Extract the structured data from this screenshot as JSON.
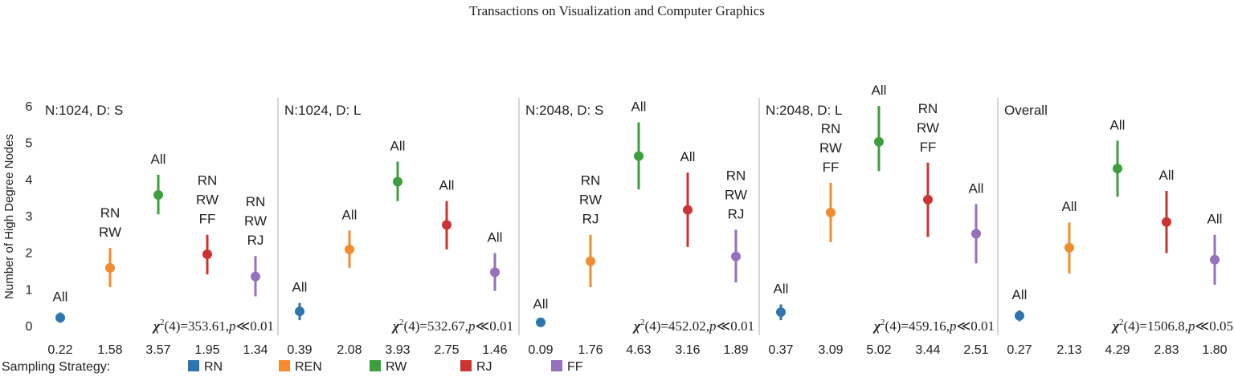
{
  "header": {
    "journal": "Transactions on Visualization and Computer Graphics"
  },
  "chart_data": {
    "type": "scatter",
    "ylabel": "Number of High Degree Nodes",
    "ylim": [
      0,
      6
    ],
    "yticks": [
      0,
      1,
      2,
      3,
      4,
      5,
      6
    ],
    "legend": {
      "title": "Sampling Strategy:",
      "position": "bottom",
      "items": [
        {
          "name": "RN",
          "color": "#2e75b0"
        },
        {
          "name": "REN",
          "color": "#f28c2e"
        },
        {
          "name": "RW",
          "color": "#3c9f3c"
        },
        {
          "name": "RJ",
          "color": "#cc3333"
        },
        {
          "name": "FF",
          "color": "#9470bd"
        }
      ]
    },
    "panels": [
      {
        "title": "N:1024, D: S",
        "stat": "χ2(4)=353.61,p≪0.01",
        "points": [
          {
            "strategy": "RN",
            "mean": 0.22,
            "ci": [
              0.08,
              0.36
            ],
            "label": "0.22",
            "annot": [
              "All"
            ]
          },
          {
            "strategy": "REN",
            "mean": 1.58,
            "ci": [
              1.05,
              2.12
            ],
            "label": "1.58",
            "annot": [
              "RN",
              "RW"
            ]
          },
          {
            "strategy": "RW",
            "mean": 3.57,
            "ci": [
              3.04,
              4.12
            ],
            "label": "3.57",
            "annot": [
              "All"
            ]
          },
          {
            "strategy": "RJ",
            "mean": 1.95,
            "ci": [
              1.4,
              2.48
            ],
            "label": "1.95",
            "annot": [
              "RN",
              "RW",
              "FF"
            ]
          },
          {
            "strategy": "FF",
            "mean": 1.34,
            "ci": [
              0.8,
              1.9
            ],
            "label": "1.34",
            "annot": [
              "RN",
              "RW",
              "RJ"
            ]
          }
        ]
      },
      {
        "title": "N:1024, D: L",
        "stat": "χ2(4)=532.67,p≪0.01",
        "points": [
          {
            "strategy": "RN",
            "mean": 0.39,
            "ci": [
              0.15,
              0.62
            ],
            "label": "0.39",
            "annot": [
              "All"
            ]
          },
          {
            "strategy": "REN",
            "mean": 2.08,
            "ci": [
              1.58,
              2.6
            ],
            "label": "2.08",
            "annot": [
              "All"
            ]
          },
          {
            "strategy": "RW",
            "mean": 3.93,
            "ci": [
              3.4,
              4.48
            ],
            "label": "3.93",
            "annot": [
              "All"
            ]
          },
          {
            "strategy": "RJ",
            "mean": 2.75,
            "ci": [
              2.08,
              3.4
            ],
            "label": "2.75",
            "annot": [
              "All"
            ]
          },
          {
            "strategy": "FF",
            "mean": 1.46,
            "ci": [
              0.95,
              1.98
            ],
            "label": "1.46",
            "annot": [
              "All"
            ]
          }
        ]
      },
      {
        "title": "N:2048, D: S",
        "stat": "χ2(4)=452.02,p≪0.01",
        "points": [
          {
            "strategy": "RN",
            "mean": 0.09,
            "ci": [
              0.0,
              0.16
            ],
            "label": "0.09",
            "annot": [
              "All"
            ]
          },
          {
            "strategy": "REN",
            "mean": 1.76,
            "ci": [
              1.05,
              2.48
            ],
            "label": "1.76",
            "annot": [
              "RN",
              "RW",
              "RJ"
            ]
          },
          {
            "strategy": "RW",
            "mean": 4.63,
            "ci": [
              3.72,
              5.55
            ],
            "label": "4.63",
            "annot": [
              "All"
            ]
          },
          {
            "strategy": "RJ",
            "mean": 3.16,
            "ci": [
              2.15,
              4.18
            ],
            "label": "3.16",
            "annot": [
              "All"
            ]
          },
          {
            "strategy": "FF",
            "mean": 1.89,
            "ci": [
              1.18,
              2.62
            ],
            "label": "1.89",
            "annot": [
              "RN",
              "RW",
              "RJ"
            ]
          }
        ]
      },
      {
        "title": "N:2048, D: L",
        "stat": "χ2(4)=459.16,p≪0.01",
        "points": [
          {
            "strategy": "RN",
            "mean": 0.37,
            "ci": [
              0.15,
              0.58
            ],
            "label": "0.37",
            "annot": [
              "All"
            ]
          },
          {
            "strategy": "REN",
            "mean": 3.09,
            "ci": [
              2.28,
              3.9
            ],
            "label": "3.09",
            "annot": [
              "RN",
              "RW",
              "FF"
            ]
          },
          {
            "strategy": "RW",
            "mean": 5.02,
            "ci": [
              4.22,
              6.0
            ],
            "label": "5.02",
            "annot": [
              "All"
            ]
          },
          {
            "strategy": "RJ",
            "mean": 3.44,
            "ci": [
              2.42,
              4.45
            ],
            "label": "3.44",
            "annot": [
              "RN",
              "RW",
              "FF"
            ]
          },
          {
            "strategy": "FF",
            "mean": 2.51,
            "ci": [
              1.7,
              3.32
            ],
            "label": "2.51",
            "annot": [
              "All"
            ]
          }
        ]
      },
      {
        "title": "Overall",
        "stat": "χ2(4)=1506.8,p≪0.05",
        "points": [
          {
            "strategy": "RN",
            "mean": 0.27,
            "ci": [
              0.12,
              0.42
            ],
            "label": "0.27",
            "annot": [
              "All"
            ]
          },
          {
            "strategy": "REN",
            "mean": 2.13,
            "ci": [
              1.42,
              2.82
            ],
            "label": "2.13",
            "annot": [
              "All"
            ]
          },
          {
            "strategy": "RW",
            "mean": 4.29,
            "ci": [
              3.52,
              5.05
            ],
            "label": "4.29",
            "annot": [
              "All"
            ]
          },
          {
            "strategy": "RJ",
            "mean": 2.83,
            "ci": [
              1.98,
              3.68
            ],
            "label": "2.83",
            "annot": [
              "All"
            ]
          },
          {
            "strategy": "FF",
            "mean": 1.8,
            "ci": [
              1.12,
              2.48
            ],
            "label": "1.80",
            "annot": [
              "All"
            ]
          }
        ]
      }
    ]
  }
}
